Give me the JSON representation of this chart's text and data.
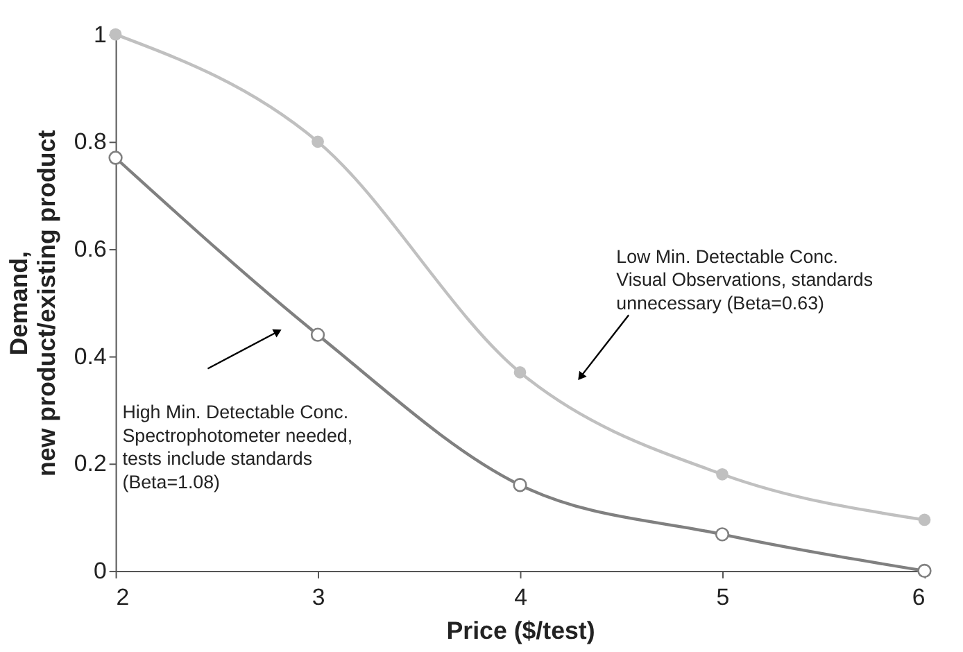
{
  "chart_data": {
    "type": "line",
    "xlabel": "Price ($/test)",
    "ylabel": "Demand,\nnew product/existing product",
    "x": [
      2,
      3,
      4,
      5,
      6
    ],
    "series": [
      {
        "color": "#c0c0c0",
        "values": [
          1.0,
          0.8,
          0.37,
          0.18,
          0.095
        ]
      },
      {
        "color": "#808080",
        "values": [
          0.77,
          0.44,
          0.16,
          0.068,
          0.0
        ]
      }
    ],
    "annotations": [
      "High Min. Detectable Conc.\nSpectrophotometer needed,\ntests include standards\n(Beta=1.08)",
      "Low Min. Detectable Conc.\nVisual Observations, standards\nunnecessary (Beta=0.63)"
    ],
    "xlim": [
      2,
      6
    ],
    "xticks": [
      2,
      3,
      4,
      5,
      6
    ],
    "ylim": [
      0,
      1
    ],
    "yticks": [
      0,
      0.2,
      0.4,
      0.6,
      0.8,
      1
    ],
    "grid": false,
    "legend": false,
    "marker": "circle",
    "line_style": "solid"
  }
}
